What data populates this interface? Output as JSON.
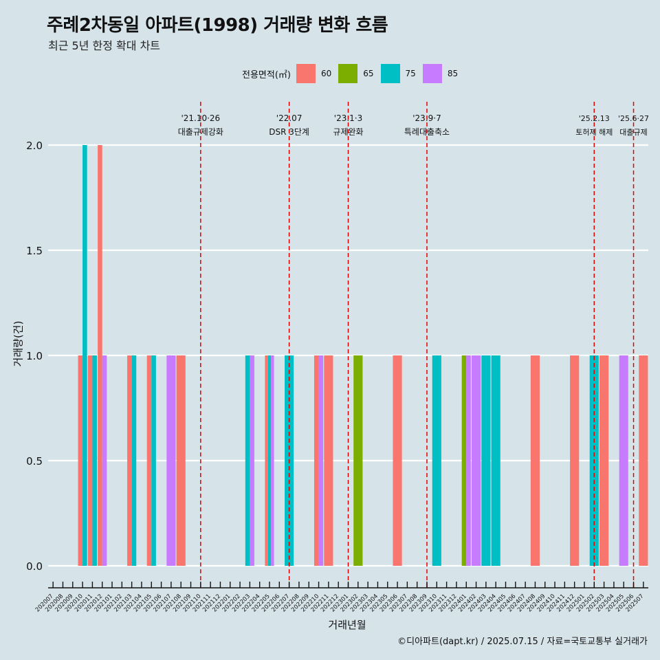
{
  "chart_data": {
    "type": "bar",
    "title": "주례2차동일 아파트(1998) 거래량 변화 흐름",
    "subtitle": "최근 5년 한정 확대 차트",
    "xlabel": "거래년월",
    "ylabel": "거래량(건)",
    "caption": "©디아파트(dapt.kr) / 2025.07.15 / 자료=국토교통부 실거래가",
    "ylim": [
      0,
      2
    ],
    "y_ticks": [
      0.0,
      0.5,
      1.0,
      1.5,
      2.0
    ],
    "y_tick_labels": [
      "0.0",
      "0.5",
      "1.0",
      "1.5",
      "2.0"
    ],
    "grid": true,
    "legend": {
      "title": "전용면적(㎡)",
      "position": "top",
      "entries": [
        {
          "name": "60",
          "color": "#f8766d"
        },
        {
          "name": "65",
          "color": "#7cae00"
        },
        {
          "name": "75",
          "color": "#00bfc4"
        },
        {
          "name": "85",
          "color": "#c77cff"
        }
      ]
    },
    "months": [
      "202007",
      "202008",
      "202009",
      "202010",
      "202011",
      "202012",
      "202101",
      "202102",
      "202103",
      "202104",
      "202105",
      "202106",
      "202107",
      "202108",
      "202109",
      "202110",
      "202111",
      "202112",
      "202201",
      "202202",
      "202203",
      "202204",
      "202205",
      "202206",
      "202207",
      "202208",
      "202209",
      "202210",
      "202211",
      "202212",
      "202301",
      "202302",
      "202303",
      "202304",
      "202305",
      "202306",
      "202307",
      "202308",
      "202309",
      "202310",
      "202311",
      "202312",
      "202401",
      "202402",
      "202403",
      "202404",
      "202405",
      "202406",
      "202407",
      "202408",
      "202409",
      "202410",
      "202411",
      "202412",
      "202501",
      "202502",
      "202503",
      "202504",
      "202505",
      "202506",
      "202507"
    ],
    "series": [
      {
        "name": "60",
        "values": [
          0,
          0,
          0,
          1,
          1,
          2,
          0,
          0,
          1,
          0,
          1,
          0,
          0,
          1,
          0,
          0,
          0,
          0,
          0,
          0,
          0,
          0,
          1,
          0,
          0,
          0,
          0,
          1,
          1,
          0,
          0,
          0,
          0,
          0,
          0,
          1,
          0,
          0,
          0,
          0,
          0,
          0,
          0,
          0,
          0,
          0,
          0,
          0,
          0,
          1,
          0,
          0,
          0,
          1,
          0,
          0,
          1,
          0,
          0,
          0,
          1
        ]
      },
      {
        "name": "65",
        "values": [
          0,
          0,
          0,
          0,
          0,
          0,
          0,
          0,
          0,
          0,
          0,
          0,
          0,
          0,
          0,
          0,
          0,
          0,
          0,
          0,
          0,
          0,
          0,
          0,
          0,
          0,
          0,
          0,
          0,
          0,
          0,
          1,
          0,
          0,
          0,
          0,
          0,
          0,
          0,
          0,
          0,
          0,
          1,
          0,
          0,
          0,
          0,
          0,
          0,
          0,
          0,
          0,
          0,
          0,
          0,
          0,
          0,
          0,
          0,
          0,
          0
        ]
      },
      {
        "name": "75",
        "values": [
          0,
          0,
          0,
          2,
          1,
          0,
          0,
          0,
          1,
          0,
          1,
          0,
          0,
          0,
          0,
          0,
          0,
          0,
          0,
          0,
          1,
          0,
          1,
          0,
          1,
          0,
          0,
          0,
          0,
          0,
          0,
          0,
          0,
          0,
          0,
          0,
          0,
          0,
          0,
          1,
          0,
          0,
          0,
          0,
          1,
          1,
          0,
          0,
          0,
          0,
          0,
          0,
          0,
          0,
          0,
          1,
          0,
          0,
          0,
          0,
          0
        ]
      },
      {
        "name": "85",
        "values": [
          0,
          0,
          0,
          0,
          0,
          1,
          0,
          0,
          0,
          0,
          0,
          0,
          1,
          0,
          0,
          0,
          0,
          0,
          0,
          0,
          1,
          0,
          1,
          0,
          0,
          0,
          0,
          1,
          0,
          0,
          0,
          0,
          0,
          0,
          0,
          0,
          0,
          0,
          0,
          0,
          0,
          0,
          1,
          1,
          0,
          0,
          0,
          0,
          0,
          0,
          0,
          0,
          0,
          0,
          0,
          0,
          0,
          0,
          1,
          0,
          0
        ]
      }
    ],
    "events": [
      {
        "x": "202110",
        "date": "'21.10·26",
        "label": "대출규제강화"
      },
      {
        "x": "202207",
        "date": "'22.07",
        "label": "DSR 3단계"
      },
      {
        "x": "202301",
        "date": "'23.1·3",
        "label": "규제완화"
      },
      {
        "x": "202309",
        "date": "'23.9·7",
        "label": "특례대출축소"
      },
      {
        "x": "202502",
        "date": "'25.2.13",
        "label": "토허제 해제"
      },
      {
        "x": "202506",
        "date": "'25.6·27",
        "label": "대출규제"
      }
    ]
  }
}
